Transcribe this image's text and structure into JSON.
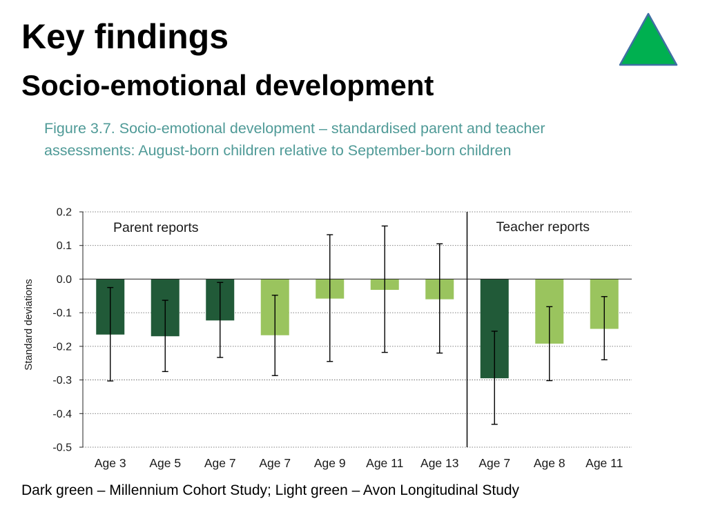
{
  "slide": {
    "title": "Key findings",
    "subtitle": "Socio-emotional development",
    "logo_icon": "green-triangle-icon",
    "logo_color": "#00b050"
  },
  "figure": {
    "caption": "Figure 3.7. Socio-emotional development – standardised parent and teacher assessments: August-born children relative to September-born children"
  },
  "footnote": "Dark green – Millennium Cohort Study; Light green – Avon Longitudinal Study",
  "colors": {
    "dark_green": "#215a38",
    "light_green": "#9ac45e",
    "caption": "#4f9a97"
  },
  "chart_data": {
    "type": "bar",
    "title": "",
    "xlabel": "",
    "ylabel": "Standard deviations",
    "ylim": [
      -0.5,
      0.2
    ],
    "yticks": [
      "0.2",
      "0.1",
      "0.0",
      "-0.1",
      "-0.2",
      "-0.3",
      "-0.4",
      "-0.5"
    ],
    "ytick_values": [
      0.2,
      0.1,
      0.0,
      -0.1,
      -0.2,
      -0.3,
      -0.4,
      -0.5
    ],
    "grid": "horizontal-dotted",
    "panels": [
      {
        "label": "Parent reports",
        "start": 0,
        "end": 6
      },
      {
        "label": "Teacher reports",
        "start": 7,
        "end": 9
      }
    ],
    "categories": [
      "Age 3",
      "Age 5",
      "Age 7",
      "Age 7",
      "Age 9",
      "Age 11",
      "Age 13",
      "Age 7",
      "Age 8",
      "Age 11"
    ],
    "values": [
      -0.165,
      -0.17,
      -0.123,
      -0.167,
      -0.058,
      -0.032,
      -0.06,
      -0.295,
      -0.192,
      -0.148
    ],
    "error_low": [
      -0.303,
      -0.275,
      -0.233,
      -0.287,
      -0.245,
      -0.218,
      -0.22,
      -0.432,
      -0.302,
      -0.24
    ],
    "error_high": [
      -0.025,
      -0.063,
      -0.01,
      -0.048,
      0.132,
      0.158,
      0.105,
      -0.155,
      -0.082,
      -0.052
    ],
    "study": [
      "dark",
      "dark",
      "dark",
      "light",
      "light",
      "light",
      "light",
      "dark",
      "light",
      "light"
    ]
  }
}
